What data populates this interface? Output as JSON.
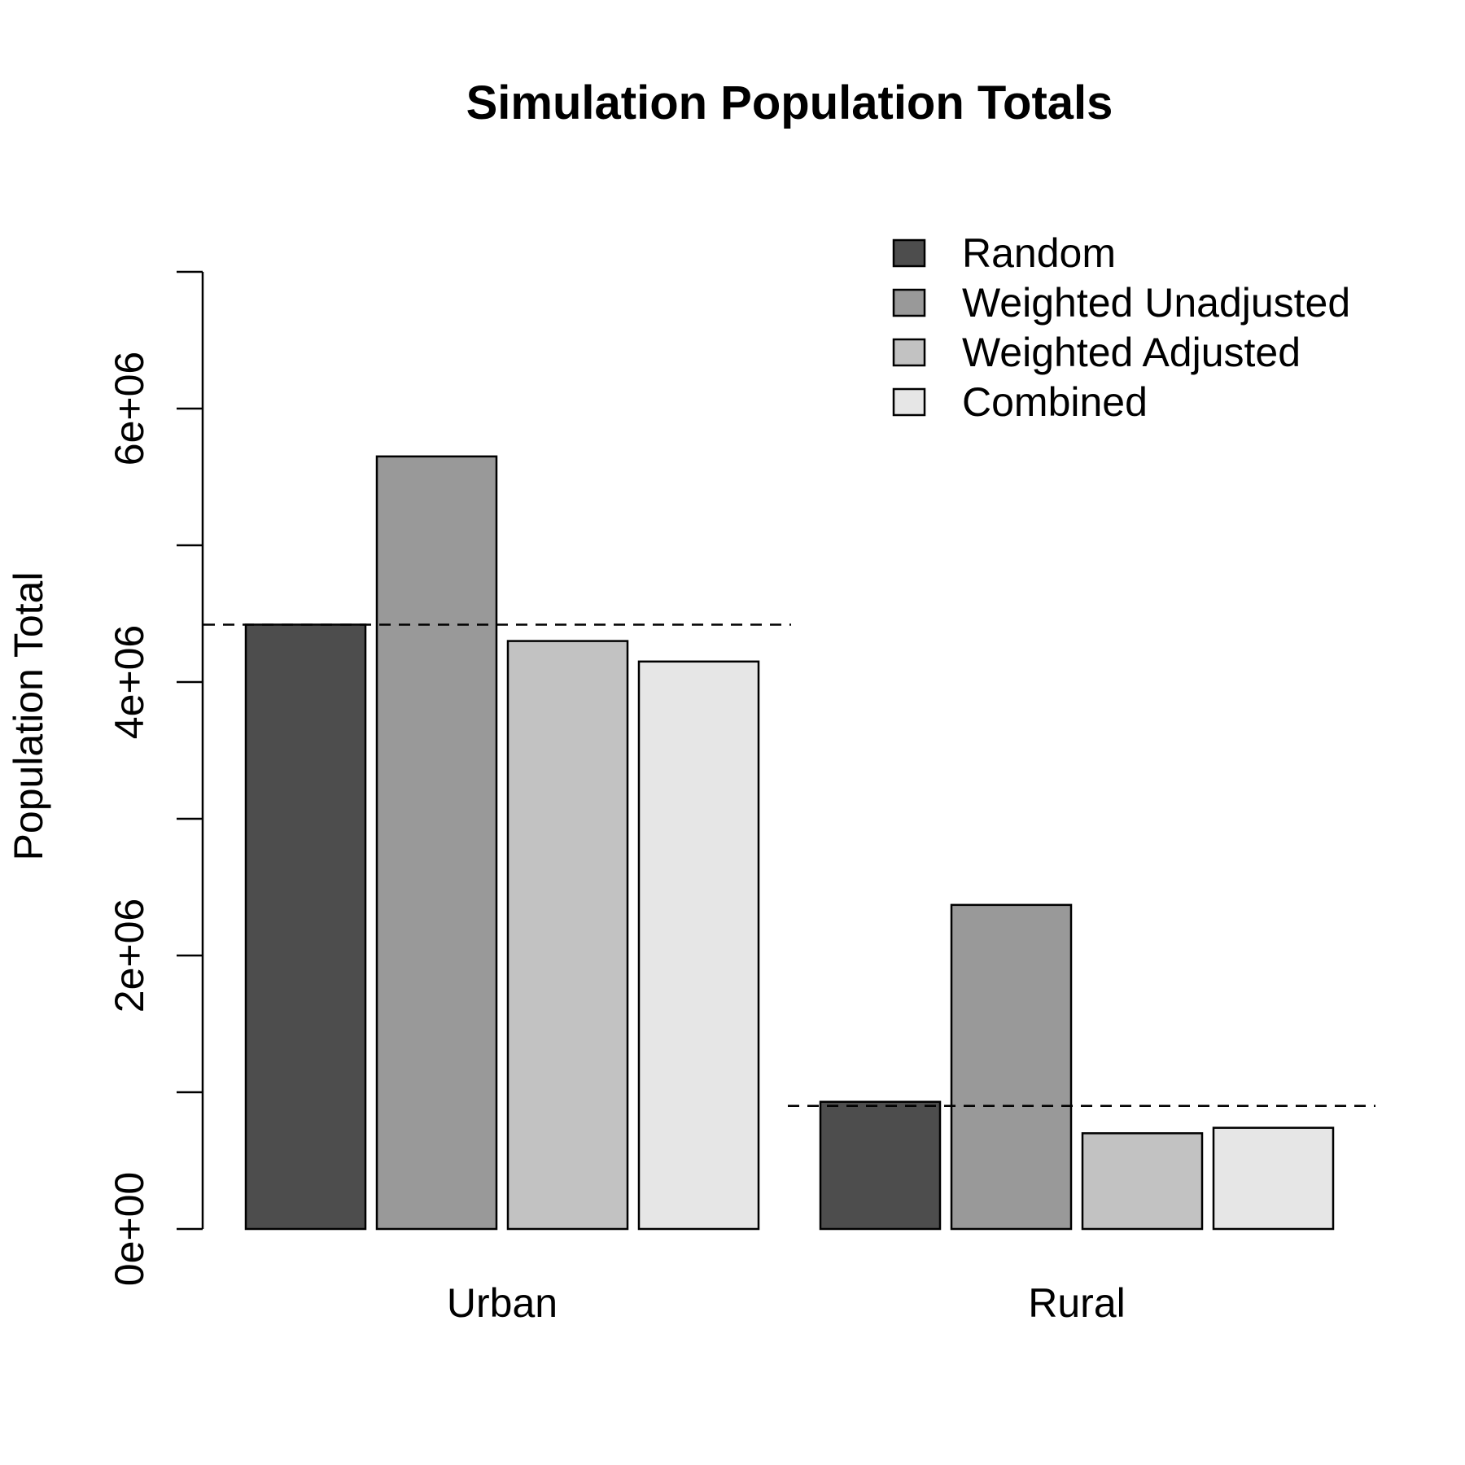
{
  "chart_data": {
    "type": "bar",
    "title": "Simulation Population Totals",
    "xlabel": "",
    "ylabel": "Population Total",
    "categories": [
      "Urban",
      "Rural"
    ],
    "series": [
      {
        "name": "Random",
        "color": "#4d4d4d",
        "values": [
          4420000,
          930000
        ]
      },
      {
        "name": "Weighted Unadjusted",
        "color": "#999999",
        "values": [
          5650000,
          2370000
        ]
      },
      {
        "name": "Weighted Adjusted",
        "color": "#c2c2c2",
        "values": [
          4300000,
          700000
        ]
      },
      {
        "name": "Combined",
        "color": "#e6e6e6",
        "values": [
          4150000,
          740000
        ]
      }
    ],
    "reference_lines": [
      4420000,
      900000
    ],
    "yticks": [
      0,
      1000000,
      2000000,
      3000000,
      4000000,
      5000000,
      6000000,
      7000000
    ],
    "ytick_labels": [
      "0e+00",
      "",
      "2e+06",
      "",
      "4e+06",
      "",
      "6e+06",
      ""
    ],
    "ylim": [
      0,
      7000000
    ],
    "legend_position": "top-right",
    "grid": false
  }
}
